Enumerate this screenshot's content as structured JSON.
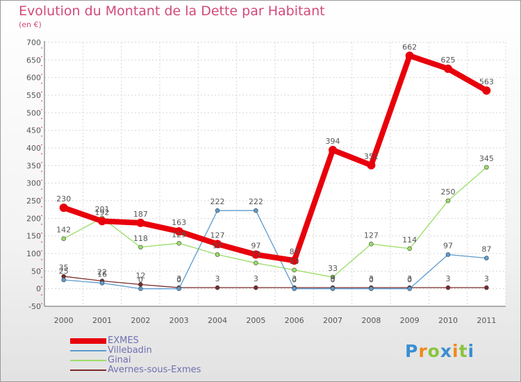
{
  "chart_data": {
    "type": "line",
    "title": "Evolution du Montant de la Dette par Habitant",
    "subtitle": "(en €)",
    "x": [
      "2000",
      "2001",
      "2002",
      "2003",
      "2004",
      "2005",
      "2006",
      "2007",
      "2008",
      "2009",
      "2010",
      "2011"
    ],
    "ylim": [
      -50,
      700
    ],
    "yticks": [
      -50,
      0,
      50,
      100,
      150,
      200,
      250,
      300,
      350,
      400,
      450,
      500,
      550,
      600,
      650,
      700
    ],
    "grid": true,
    "legend_position": "bottom-left",
    "series": [
      {
        "name": "EXMES",
        "color": "#e8000b",
        "values": [
          230,
          192,
          187,
          163,
          127,
          97,
          80,
          394,
          351,
          662,
          625,
          563
        ]
      },
      {
        "name": "Villebadin",
        "color": "#5b9bcf",
        "values": [
          25,
          16,
          0,
          0,
          222,
          222,
          0,
          0,
          0,
          0,
          97,
          87
        ]
      },
      {
        "name": "Ginai",
        "color": "#99dd66",
        "values": [
          142,
          201,
          118,
          129,
          97,
          73,
          53,
          33,
          127,
          114,
          250,
          345
        ]
      },
      {
        "name": "Avernes-sous-Exmes",
        "color": "#7a2a2a",
        "values": [
          35,
          22,
          12,
          3,
          3,
          3,
          3,
          3,
          3,
          3,
          3,
          3
        ]
      }
    ],
    "labels": [
      {
        "series": 0,
        "text": [
          "230",
          "192",
          "187",
          "163",
          "127",
          "97",
          "80",
          "394",
          "351",
          "662",
          "625",
          "563"
        ]
      },
      {
        "series": 1,
        "text": [
          "25",
          "16",
          "0",
          "0",
          "222",
          "222",
          "0",
          "0",
          "0",
          "0",
          "97",
          "87"
        ]
      },
      {
        "series": 2,
        "text": [
          "142",
          "201",
          "118",
          "129",
          "97",
          "73",
          "53",
          "33",
          "127",
          "114",
          "250",
          "345"
        ]
      },
      {
        "series": 3,
        "text": [
          "35",
          "22",
          "12",
          "3",
          "3",
          "3",
          "3",
          "3",
          "3",
          "3",
          "3",
          "3"
        ]
      }
    ]
  },
  "logo": {
    "letters": [
      "P",
      "r",
      "o",
      "x",
      "i",
      "t",
      "i"
    ],
    "colors": [
      "#3a8ed1",
      "#f08a1c",
      "#8ac43f",
      "#3a8ed1",
      "#f08a1c",
      "#8ac43f",
      "#3a8ed1"
    ]
  }
}
